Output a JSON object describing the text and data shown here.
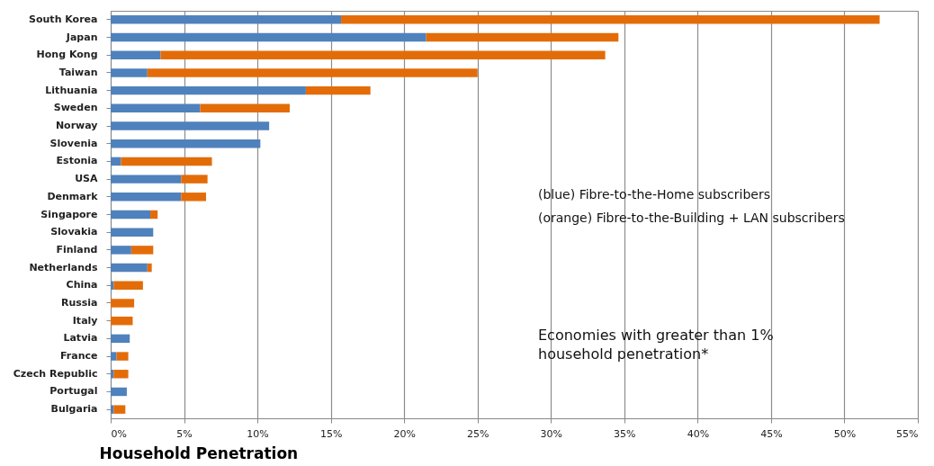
{
  "chart_data": {
    "type": "bar",
    "orientation": "horizontal",
    "stacked": true,
    "xlabel": "Household Penetration",
    "categories": [
      "South Korea",
      "Japan",
      "Hong Kong",
      "Taiwan",
      "Lithuania",
      "Sweden",
      "Norway",
      "Slovenia",
      "Estonia",
      "USA",
      "Denmark",
      "Singapore",
      "Slovakia",
      "Finland",
      "Netherlands",
      "China",
      "Russia",
      "Italy",
      "Latvia",
      "France",
      "Czech Republic",
      "Portugal",
      "Bulgaria"
    ],
    "series": [
      {
        "color": "#4f81bd",
        "values": [
          15.7,
          21.5,
          3.4,
          2.5,
          13.3,
          6.1,
          10.8,
          10.2,
          0.7,
          4.8,
          4.8,
          2.7,
          2.9,
          1.4,
          2.5,
          0.2,
          0,
          0,
          1.3,
          0.4,
          0.2,
          1.1,
          0.2
        ]
      },
      {
        "color": "#e36c09",
        "values": [
          36.7,
          13.1,
          30.3,
          22.5,
          4.4,
          6.1,
          0,
          0,
          6.2,
          1.8,
          1.7,
          0.5,
          0,
          1.5,
          0.3,
          2.0,
          1.6,
          1.5,
          0,
          0.8,
          1.0,
          0,
          0.8
        ]
      }
    ],
    "xlim": [
      0,
      55
    ],
    "xticks": [
      {
        "value": 0,
        "label": "0%"
      },
      {
        "value": 5,
        "label": "5%"
      },
      {
        "value": 10,
        "label": "10%"
      },
      {
        "value": 15,
        "label": "15%"
      },
      {
        "value": 20,
        "label": "20%"
      },
      {
        "value": 25,
        "label": "25%"
      },
      {
        "value": 30,
        "label": "30%"
      },
      {
        "value": 35,
        "label": "35%"
      },
      {
        "value": 40,
        "label": "40%"
      },
      {
        "value": 45,
        "label": "45%"
      },
      {
        "value": 50,
        "label": "50%"
      },
      {
        "value": 55,
        "label": "55%"
      }
    ],
    "grid": "x",
    "annotations": [
      "(blue) Fibre-to-the-Home subscribers",
      "(orange) Fibre-to-the-Building + LAN subscribers",
      "Economies with greater than 1%\nhousehold penetration*"
    ]
  }
}
